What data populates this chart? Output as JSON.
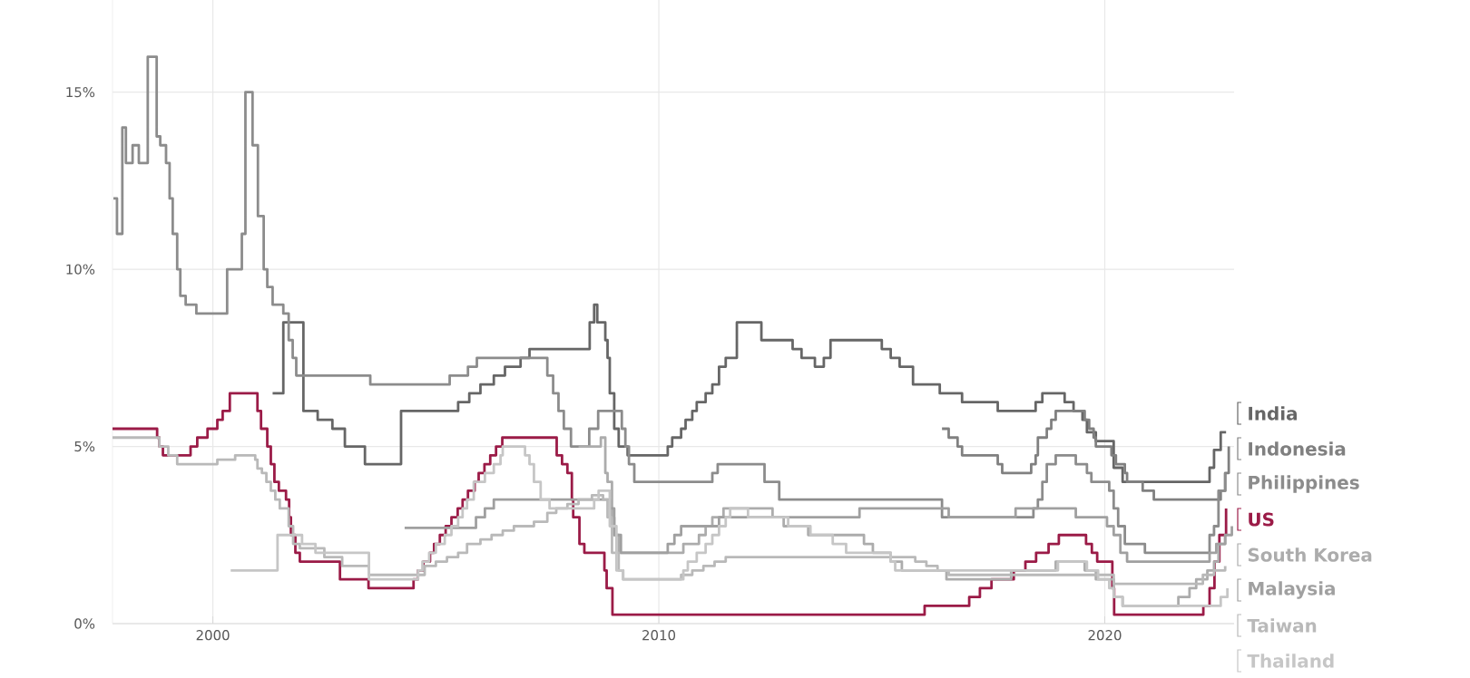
{
  "chart_data": {
    "type": "step",
    "xlim": [
      1997.75,
      2022.9
    ],
    "ylim": [
      0,
      17.6
    ],
    "xticks": [
      2000,
      2010,
      2020
    ],
    "yticks": [
      {
        "value": 0,
        "label": "0%"
      },
      {
        "value": 5,
        "label": "5%"
      },
      {
        "value": 10,
        "label": "10%"
      },
      {
        "value": 15,
        "label": "15%"
      }
    ],
    "grid": true,
    "legend": "right",
    "series": [
      {
        "name": "India",
        "color": "#666666",
        "x": [
          2001.34,
          2001.58,
          2002.03,
          2002.35,
          2002.68,
          2002.96,
          2003.41,
          2004.22,
          2005.5,
          2005.75,
          2006.0,
          2006.3,
          2006.55,
          2006.9,
          2007.1,
          2007.3,
          2008.45,
          2008.55,
          2008.62,
          2008.8,
          2008.85,
          2008.9,
          2009.0,
          2009.1,
          2009.3,
          2010.2,
          2010.3,
          2010.5,
          2010.6,
          2010.75,
          2010.85,
          2011.05,
          2011.2,
          2011.35,
          2011.5,
          2011.75,
          2012.3,
          2013.0,
          2013.2,
          2013.5,
          2013.7,
          2013.85,
          2015.0,
          2015.2,
          2015.4,
          2015.7,
          2016.3,
          2016.8,
          2017.6,
          2018.45,
          2018.6,
          2019.1,
          2019.3,
          2019.5,
          2019.6,
          2019.8,
          2020.2,
          2020.4,
          2022.35,
          2022.45,
          2022.6,
          2022.72
        ],
        "values": [
          6.5,
          8.5,
          6.0,
          5.75,
          5.5,
          5.0,
          4.5,
          6.0,
          6.25,
          6.5,
          6.75,
          7.0,
          7.25,
          7.5,
          7.75,
          7.75,
          8.5,
          9.0,
          8.5,
          8.0,
          7.5,
          6.5,
          5.5,
          5.0,
          4.75,
          5.0,
          5.25,
          5.5,
          5.75,
          6.0,
          6.25,
          6.5,
          6.75,
          7.25,
          7.5,
          8.5,
          8.0,
          7.75,
          7.5,
          7.25,
          7.5,
          8.0,
          7.75,
          7.5,
          7.25,
          6.75,
          6.5,
          6.25,
          6.0,
          6.25,
          6.5,
          6.25,
          6.0,
          5.75,
          5.4,
          5.15,
          4.4,
          4.0,
          4.4,
          4.9,
          5.4,
          5.4
        ]
      },
      {
        "name": "Indonesia",
        "color": "#808080",
        "x": [
          2016.35,
          2016.5,
          2016.7,
          2016.8,
          2017.6,
          2017.7,
          2018.35,
          2018.45,
          2018.5,
          2018.7,
          2018.8,
          2018.9,
          2019.55,
          2019.65,
          2019.75,
          2019.8,
          2020.15,
          2020.25,
          2020.45,
          2020.5,
          2020.85,
          2021.1,
          2022.6,
          2022.7,
          2022.78
        ],
        "values": [
          5.5,
          5.25,
          5.0,
          4.75,
          4.5,
          4.25,
          4.5,
          4.75,
          5.25,
          5.5,
          5.75,
          6.0,
          5.75,
          5.5,
          5.25,
          5.0,
          4.75,
          4.5,
          4.25,
          4.0,
          3.75,
          3.5,
          3.75,
          4.25,
          5.0
        ]
      },
      {
        "name": "Philippines",
        "color": "#8c8c8c",
        "x": [
          1997.77,
          1997.85,
          1997.97,
          1998.05,
          1998.2,
          1998.34,
          1998.54,
          1998.74,
          1998.82,
          1998.95,
          1999.03,
          1999.1,
          1999.2,
          1999.27,
          1999.39,
          1999.63,
          2000.32,
          2000.65,
          2000.73,
          2000.89,
          2001.01,
          2001.14,
          2001.22,
          2001.34,
          2001.58,
          2001.7,
          2001.79,
          2001.87,
          2003.53,
          2005.31,
          2005.72,
          2005.92,
          2007.5,
          2007.63,
          2007.75,
          2007.87,
          2008.03,
          2008.44,
          2008.64,
          2009.17,
          2009.25,
          2009.33,
          2009.45,
          2011.2,
          2011.32,
          2012.37,
          2012.7,
          2016.35,
          2018.4,
          2018.5,
          2018.6,
          2018.7,
          2018.9,
          2019.35,
          2019.6,
          2019.7,
          2020.1,
          2020.2,
          2020.3,
          2020.45,
          2020.9,
          2022.35,
          2022.45,
          2022.55,
          2022.7
        ],
        "values": [
          12.0,
          11.0,
          14.0,
          13.0,
          13.5,
          13.0,
          16.0,
          13.75,
          13.5,
          13.0,
          12.0,
          11.0,
          10.0,
          9.25,
          9.0,
          8.75,
          10.0,
          11.0,
          15.0,
          13.5,
          11.5,
          10.0,
          9.5,
          9.0,
          8.75,
          8.0,
          7.5,
          7.0,
          6.75,
          7.0,
          7.25,
          7.5,
          7.0,
          6.5,
          6.0,
          5.5,
          5.0,
          5.5,
          6.0,
          5.5,
          5.0,
          4.5,
          4.0,
          4.25,
          4.5,
          4.0,
          3.5,
          3.0,
          3.25,
          3.5,
          4.0,
          4.5,
          4.75,
          4.5,
          4.25,
          4.0,
          3.75,
          3.25,
          2.75,
          2.25,
          2.0,
          2.5,
          2.75,
          3.75,
          4.25
        ]
      },
      {
        "name": "US",
        "color": "#9b1b47",
        "x": [
          1997.75,
          1998.75,
          1998.8,
          1998.88,
          1999.5,
          1999.65,
          1999.88,
          2000.1,
          2000.22,
          2000.38,
          2001.0,
          2001.08,
          2001.22,
          2001.3,
          2001.38,
          2001.48,
          2001.64,
          2001.71,
          2001.75,
          2001.85,
          2001.95,
          2002.85,
          2003.49,
          2004.5,
          2004.6,
          2004.72,
          2004.87,
          2004.96,
          2005.09,
          2005.22,
          2005.35,
          2005.49,
          2005.6,
          2005.72,
          2005.87,
          2005.96,
          2006.09,
          2006.22,
          2006.35,
          2006.49,
          2007.71,
          2007.83,
          2007.95,
          2008.05,
          2008.08,
          2008.22,
          2008.33,
          2008.78,
          2008.83,
          2008.96,
          2015.96,
          2016.96,
          2017.2,
          2017.46,
          2017.96,
          2018.22,
          2018.46,
          2018.74,
          2018.97,
          2019.58,
          2019.71,
          2019.83,
          2020.17,
          2020.21,
          2022.21,
          2022.35,
          2022.46,
          2022.57,
          2022.72
        ],
        "values": [
          5.5,
          5.25,
          5.0,
          4.75,
          5.0,
          5.25,
          5.5,
          5.75,
          6.0,
          6.5,
          6.0,
          5.5,
          5.0,
          4.5,
          4.0,
          3.75,
          3.5,
          3.0,
          2.5,
          2.0,
          1.75,
          1.25,
          1.0,
          1.25,
          1.5,
          1.75,
          2.0,
          2.25,
          2.5,
          2.75,
          3.0,
          3.25,
          3.5,
          3.75,
          4.0,
          4.25,
          4.5,
          4.75,
          5.0,
          5.25,
          4.75,
          4.5,
          4.25,
          3.5,
          3.0,
          2.25,
          2.0,
          1.5,
          1.0,
          0.25,
          0.5,
          0.75,
          1.0,
          1.25,
          1.5,
          1.75,
          2.0,
          2.25,
          2.5,
          2.25,
          2.0,
          1.75,
          1.0,
          0.25,
          0.5,
          1.0,
          1.75,
          2.5,
          3.25
        ]
      },
      {
        "name": "South Korea",
        "color": "#acacac",
        "x": [
          2008.2,
          2008.7,
          2008.8,
          2008.85,
          2008.95,
          2009.0,
          2009.1,
          2010.55,
          2010.9,
          2011.05,
          2011.2,
          2011.45,
          2012.55,
          2012.8,
          2013.35,
          2014.6,
          2014.8,
          2015.2,
          2015.45,
          2016.45,
          2017.9,
          2018.9,
          2019.55,
          2019.8,
          2020.2,
          2020.4,
          2021.65,
          2021.9,
          2022.05,
          2022.3,
          2022.45,
          2022.55,
          2022.7
        ],
        "values": [
          5.0,
          5.25,
          4.25,
          4.0,
          3.0,
          2.5,
          2.0,
          2.25,
          2.5,
          2.75,
          3.0,
          3.25,
          3.0,
          2.75,
          2.5,
          2.25,
          2.0,
          1.75,
          1.5,
          1.25,
          1.5,
          1.75,
          1.5,
          1.25,
          0.75,
          0.5,
          0.75,
          1.0,
          1.25,
          1.5,
          1.75,
          2.25,
          2.5
        ]
      },
      {
        "name": "Malaysia",
        "color": "#a0a0a0",
        "x": [
          2004.3,
          2005.9,
          2006.1,
          2006.3,
          2008.9,
          2009.0,
          2009.15,
          2010.2,
          2010.35,
          2010.5,
          2011.35,
          2014.5,
          2016.5,
          2018.0,
          2019.35,
          2020.05,
          2020.2,
          2020.35,
          2020.5,
          2022.35,
          2022.5,
          2022.7,
          2022.85
        ],
        "values": [
          2.7,
          3.0,
          3.25,
          3.5,
          3.25,
          2.5,
          2.0,
          2.25,
          2.5,
          2.75,
          3.0,
          3.25,
          3.0,
          3.25,
          3.0,
          2.75,
          2.5,
          2.0,
          1.75,
          2.0,
          2.25,
          2.5,
          2.75
        ]
      },
      {
        "name": "Taiwan",
        "color": "#b9b9b9",
        "x": [
          1997.75,
          1998.8,
          1999.0,
          1999.2,
          2000.1,
          2000.5,
          2000.95,
          2001.0,
          2001.1,
          2001.2,
          2001.3,
          2001.4,
          2001.5,
          2001.7,
          2001.8,
          2001.95,
          2002.5,
          2002.9,
          2003.5,
          2004.75,
          2005.0,
          2005.25,
          2005.5,
          2005.7,
          2006.0,
          2006.25,
          2006.5,
          2006.75,
          2007.2,
          2007.5,
          2007.7,
          2007.95,
          2008.2,
          2008.5,
          2008.75,
          2008.85,
          2008.95,
          2009.1,
          2009.2,
          2010.5,
          2010.75,
          2011.0,
          2011.25,
          2011.5,
          2015.75,
          2016.0,
          2016.25,
          2016.5,
          2020.2,
          2022.2,
          2022.45,
          2022.7
        ],
        "values": [
          5.25,
          5.0,
          4.75,
          4.5,
          4.625,
          4.75,
          4.625,
          4.375,
          4.25,
          4.0,
          3.75,
          3.5,
          3.25,
          2.75,
          2.25,
          2.125,
          1.875,
          1.625,
          1.375,
          1.625,
          1.75,
          1.875,
          2.0,
          2.25,
          2.375,
          2.5,
          2.625,
          2.75,
          2.875,
          3.125,
          3.25,
          3.375,
          3.5,
          3.625,
          3.5,
          3.0,
          2.0,
          1.5,
          1.25,
          1.375,
          1.5,
          1.625,
          1.75,
          1.875,
          1.75,
          1.625,
          1.5,
          1.375,
          1.125,
          1.375,
          1.5,
          1.625
        ]
      },
      {
        "name": "Thailand",
        "color": "#c6c6c6",
        "x": [
          2000.4,
          2001.45,
          2002.0,
          2002.3,
          2003.5,
          2004.6,
          2004.7,
          2004.85,
          2005.0,
          2005.2,
          2005.35,
          2005.5,
          2005.6,
          2005.7,
          2005.85,
          2006.1,
          2006.3,
          2006.45,
          2006.5,
          2007.0,
          2007.1,
          2007.2,
          2007.35,
          2007.55,
          2008.55,
          2008.65,
          2008.9,
          2009.05,
          2009.2,
          2010.55,
          2010.65,
          2010.85,
          2011.05,
          2011.2,
          2011.35,
          2011.5,
          2011.6,
          2012.0,
          2012.9,
          2013.4,
          2013.9,
          2014.2,
          2015.2,
          2015.3,
          2018.95,
          2019.6,
          2019.85,
          2020.1,
          2020.2,
          2020.4,
          2022.6,
          2022.75
        ],
        "values": [
          1.5,
          2.5,
          2.25,
          2.0,
          1.25,
          1.5,
          1.75,
          2.0,
          2.25,
          2.5,
          2.75,
          3.0,
          3.25,
          3.5,
          4.0,
          4.25,
          4.5,
          4.75,
          5.0,
          4.75,
          4.5,
          4.0,
          3.5,
          3.25,
          3.5,
          3.75,
          2.75,
          1.5,
          1.25,
          1.5,
          1.75,
          2.0,
          2.25,
          2.5,
          2.75,
          3.0,
          3.25,
          3.0,
          2.75,
          2.5,
          2.25,
          2.0,
          1.75,
          1.5,
          1.75,
          1.5,
          1.25,
          1.0,
          0.75,
          0.5,
          0.75,
          1.0
        ]
      }
    ]
  }
}
